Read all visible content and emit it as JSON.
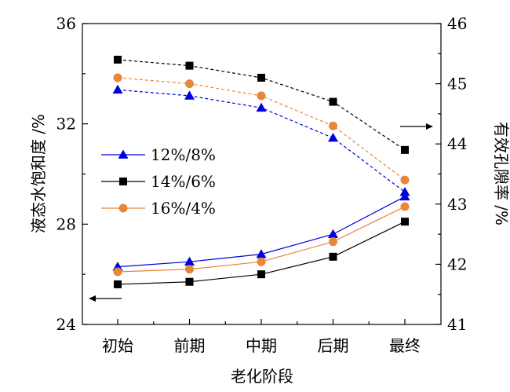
{
  "chart_data": {
    "type": "line",
    "categories": [
      "初始",
      "前期",
      "中期",
      "后期",
      "最终"
    ],
    "xlabel": "老化阶段",
    "ylabel_left": "液态水饱和度 /%",
    "ylabel_right": "有效孔隙率 /%",
    "ylim_left": [
      24,
      36
    ],
    "ylim_right": [
      41,
      46
    ],
    "yticks_left": [
      "24",
      "28",
      "32",
      "36"
    ],
    "yticks_right": [
      "41",
      "42",
      "43",
      "44",
      "45",
      "46"
    ],
    "legend_position": "center-left",
    "series": [
      {
        "name": "12%/8%",
        "color": "#0000dd",
        "marker": "triangle",
        "saturation": [
          26.3,
          26.5,
          26.8,
          27.6,
          29.1
        ],
        "porosity": [
          44.9,
          44.8,
          44.6,
          44.1,
          43.2
        ]
      },
      {
        "name": "14%/6%",
        "color": "#000000",
        "marker": "square",
        "saturation": [
          25.6,
          25.7,
          26.0,
          26.7,
          28.1
        ],
        "porosity": [
          45.4,
          45.3,
          45.1,
          44.7,
          43.9
        ]
      },
      {
        "name": "16%/4%",
        "color": "#e8863a",
        "marker": "circle",
        "saturation": [
          26.1,
          26.2,
          26.5,
          27.3,
          28.7
        ],
        "porosity": [
          45.1,
          45.0,
          44.8,
          44.3,
          43.4
        ]
      }
    ]
  }
}
